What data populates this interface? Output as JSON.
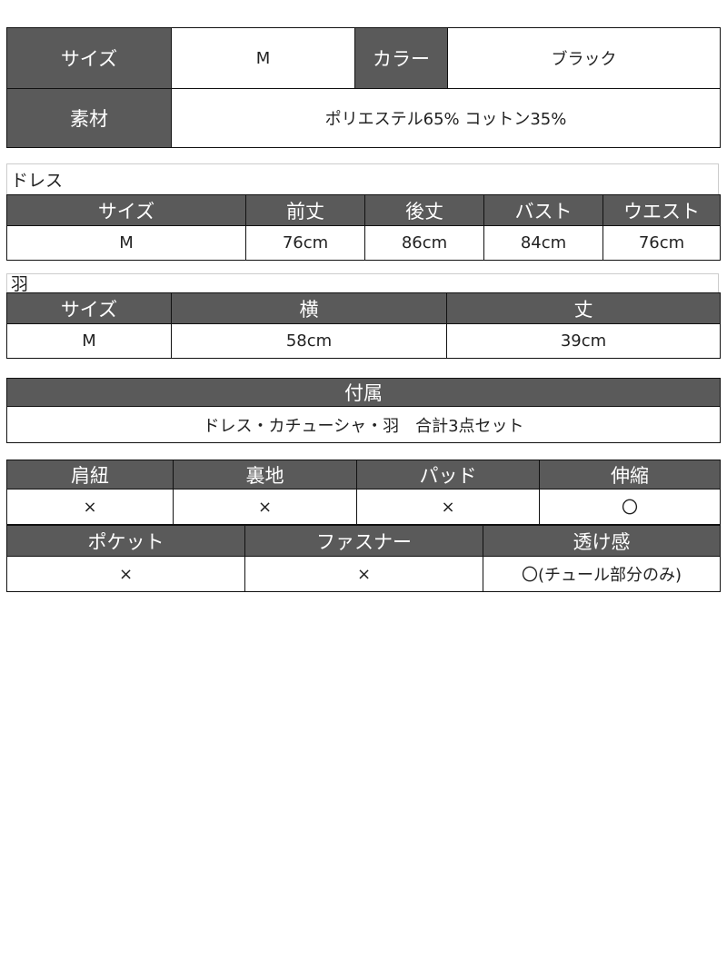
{
  "summary": {
    "size_label": "サイズ",
    "size_value": "M",
    "color_label": "カラー",
    "color_value": "ブラック",
    "material_label": "素材",
    "material_value": "ポリエステル65% コットン35%"
  },
  "dress": {
    "title": "ドレス",
    "headers": [
      "サイズ",
      "前丈",
      "後丈",
      "バスト",
      "ウエスト"
    ],
    "values": [
      "M",
      "76cm",
      "86cm",
      "84cm",
      "76cm"
    ]
  },
  "wings": {
    "title": "羽",
    "headers": [
      "サイズ",
      "横",
      "丈"
    ],
    "values": [
      "M",
      "58cm",
      "39cm"
    ]
  },
  "accessories": {
    "header": "付属",
    "value": "ドレス・カチューシャ・羽　合計3点セット"
  },
  "features1": {
    "headers": [
      "肩紐",
      "裏地",
      "パッド",
      "伸縮"
    ],
    "values": [
      "×",
      "×",
      "×",
      "〇"
    ]
  },
  "features2": {
    "headers": [
      "ポケット",
      "ファスナー",
      "透け感"
    ],
    "values": [
      "×",
      "×",
      "〇(チュール部分のみ)"
    ]
  },
  "colors": {
    "header_bg": "#5a5a5a",
    "header_text": "#ffffff"
  }
}
